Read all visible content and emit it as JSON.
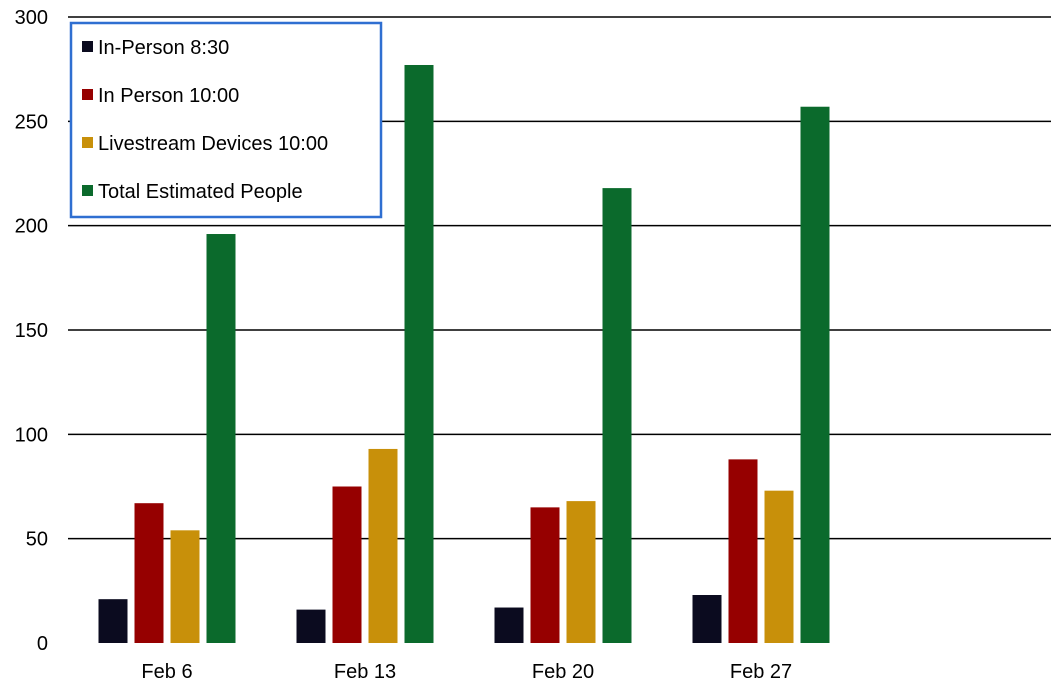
{
  "chart_data": {
    "type": "bar",
    "title": "",
    "xlabel": "",
    "ylabel": "",
    "categories": [
      "Feb 6",
      "Feb 13",
      "Feb 20",
      "Feb 27"
    ],
    "series": [
      {
        "name": "In-Person 8:30",
        "color": "#0b0b1f",
        "values": [
          21,
          16,
          17,
          23
        ]
      },
      {
        "name": "In Person 10:00",
        "color": "#960000",
        "values": [
          67,
          75,
          65,
          88
        ]
      },
      {
        "name": "Livestream Devices 10:00",
        "color": "#c8900a",
        "values": [
          54,
          93,
          68,
          73
        ]
      },
      {
        "name": "Total Estimated People",
        "color": "#0b6a2c",
        "values": [
          196,
          277,
          218,
          257
        ]
      }
    ],
    "ylim": [
      0,
      300
    ],
    "yticks": [
      0,
      50,
      100,
      150,
      200,
      250,
      300
    ],
    "grid": true,
    "legend_position": "top-left",
    "legend_border_color": "#2f6fd1"
  }
}
